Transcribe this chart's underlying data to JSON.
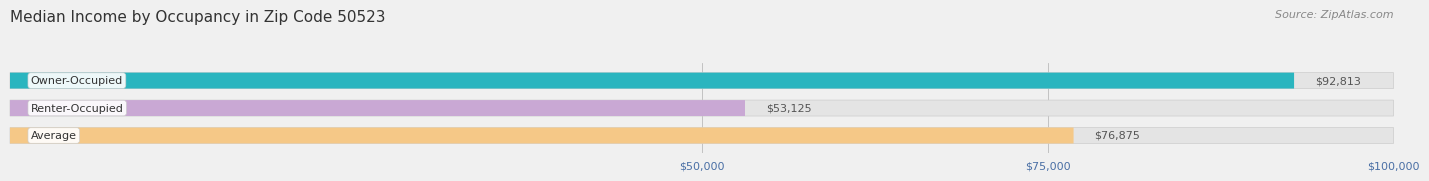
{
  "title": "Median Income by Occupancy in Zip Code 50523",
  "source": "Source: ZipAtlas.com",
  "categories": [
    "Owner-Occupied",
    "Renter-Occupied",
    "Average"
  ],
  "values": [
    92813,
    53125,
    76875
  ],
  "bar_colors": [
    "#2ab5bf",
    "#c9a8d4",
    "#f5c887"
  ],
  "label_texts": [
    "$92,813",
    "$53,125",
    "$76,875"
  ],
  "xlim": [
    0,
    100000
  ],
  "xticks": [
    50000,
    75000,
    100000
  ],
  "xtick_labels": [
    "$50,000",
    "$75,000",
    "$100,000"
  ],
  "background_color": "#f0f0f0",
  "bar_bg_color": "#e4e4e4",
  "title_fontsize": 11,
  "source_fontsize": 8,
  "label_fontsize": 8,
  "tick_fontsize": 8,
  "bar_height": 0.58,
  "bar_label_color": "#555555",
  "tick_label_color": "#4a6fa5"
}
